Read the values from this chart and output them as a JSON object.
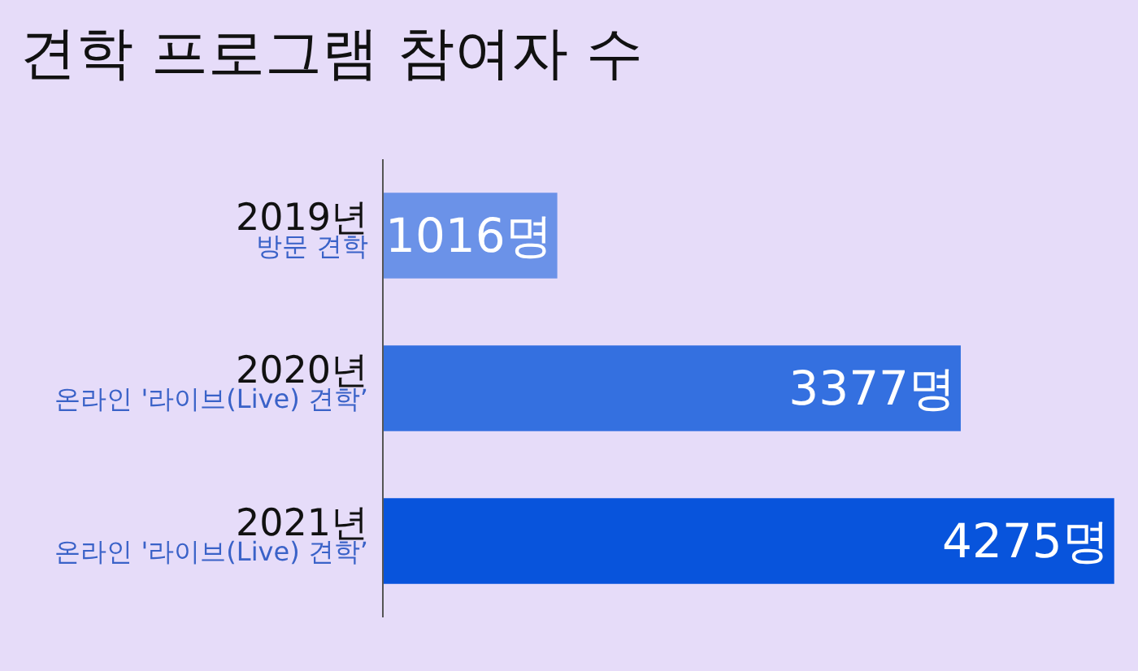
{
  "chart_data": {
    "type": "bar",
    "orientation": "horizontal",
    "title": "견학 프로그램 참여자 수",
    "categories": [
      "2019년\n방문 견학",
      "2020년\n온라인 '라이브(Live) 견학’",
      "2021년\n온라인 '라이브(Live) 견학’"
    ],
    "values": [
      1016,
      3377,
      4275
    ],
    "colors": [
      "#6b92e8",
      "#3470e0",
      "#0854dc"
    ],
    "value_labels": [
      "1016명",
      "3377명",
      "4275명"
    ],
    "xlim": [
      0,
      4300
    ],
    "tick_labels": "y"
  }
}
